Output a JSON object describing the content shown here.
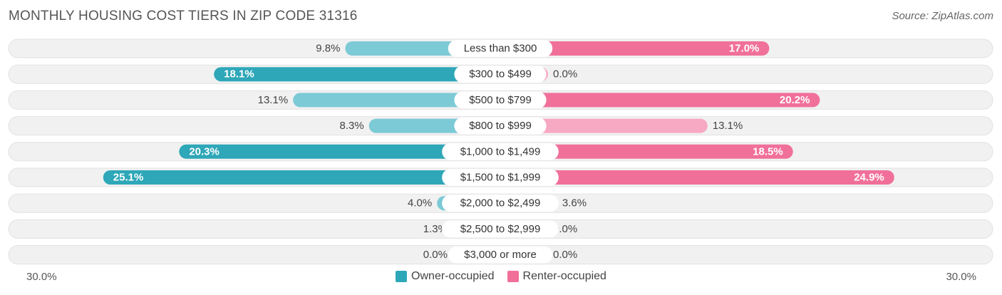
{
  "title": "MONTHLY HOUSING COST TIERS IN ZIP CODE 31316",
  "source": "Source: ZipAtlas.com",
  "colors": {
    "owner_dark": "#2ea7b8",
    "owner_light": "#7ccad6",
    "renter_dark": "#f0709a",
    "renter_light": "#f7a8c2",
    "row_bg": "#f1f1f1"
  },
  "chart_data": {
    "type": "bar",
    "orientation": "horizontal-diverging",
    "categories": [
      "Less than $300",
      "$300 to $499",
      "$500 to $799",
      "$800 to $999",
      "$1,000 to $1,499",
      "$1,500 to $1,999",
      "$2,000 to $2,499",
      "$2,500 to $2,999",
      "$3,000 or more"
    ],
    "series": [
      {
        "name": "Owner-occupied",
        "values": [
          9.8,
          18.1,
          13.1,
          8.3,
          20.3,
          25.1,
          4.0,
          1.3,
          0.0
        ],
        "labels": [
          "9.8%",
          "18.1%",
          "13.1%",
          "8.3%",
          "20.3%",
          "25.1%",
          "4.0%",
          "1.3%",
          "0.0%"
        ]
      },
      {
        "name": "Renter-occupied",
        "values": [
          17.0,
          0.0,
          20.2,
          13.1,
          18.5,
          24.9,
          3.6,
          0.0,
          0.0
        ],
        "labels": [
          "17.0%",
          "0.0%",
          "20.2%",
          "13.1%",
          "18.5%",
          "24.9%",
          "3.6%",
          "0.0%",
          "0.0%"
        ]
      }
    ],
    "xlim": [
      -30,
      30
    ],
    "axis_min_label": "30.0%",
    "axis_max_label": "30.0%",
    "legend_position": "bottom-center"
  }
}
